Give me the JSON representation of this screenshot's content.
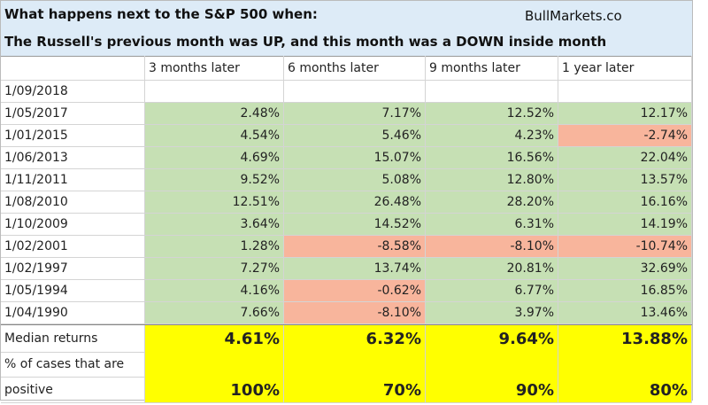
{
  "header": {
    "title_line1": "What happens next to the S&P 500 when:",
    "title_line2": "The Russell's previous month was UP, and this month was a DOWN inside month",
    "site": "BullMarkets.co",
    "color": "#ddebf7"
  },
  "table": {
    "columns": [
      "3 months later",
      "6 months later",
      "9 months later",
      "1 year later"
    ],
    "rows": [
      {
        "date": "1/09/2018",
        "values": [],
        "fills": []
      },
      {
        "date": "1/05/2017",
        "values": [
          "2.48%",
          "7.17%",
          "12.52%",
          "12.17%"
        ],
        "fills": [
          "#c6e0b4",
          "#c6e0b4",
          "#c6e0b4",
          "#c6e0b4"
        ]
      },
      {
        "date": "1/01/2015",
        "values": [
          "4.54%",
          "5.46%",
          "4.23%",
          "-2.74%"
        ],
        "fills": [
          "#c6e0b4",
          "#c6e0b4",
          "#c6e0b4",
          "#f8b59c"
        ]
      },
      {
        "date": "1/06/2013",
        "values": [
          "4.69%",
          "15.07%",
          "16.56%",
          "22.04%"
        ],
        "fills": [
          "#c6e0b4",
          "#c6e0b4",
          "#c6e0b4",
          "#c6e0b4"
        ]
      },
      {
        "date": "1/11/2011",
        "values": [
          "9.52%",
          "5.08%",
          "12.80%",
          "13.57%"
        ],
        "fills": [
          "#c6e0b4",
          "#c6e0b4",
          "#c6e0b4",
          "#c6e0b4"
        ]
      },
      {
        "date": "1/08/2010",
        "values": [
          "12.51%",
          "26.48%",
          "28.20%",
          "16.16%"
        ],
        "fills": [
          "#c6e0b4",
          "#c6e0b4",
          "#c6e0b4",
          "#c6e0b4"
        ]
      },
      {
        "date": "1/10/2009",
        "values": [
          "3.64%",
          "14.52%",
          "6.31%",
          "14.19%"
        ],
        "fills": [
          "#c6e0b4",
          "#c6e0b4",
          "#c6e0b4",
          "#c6e0b4"
        ]
      },
      {
        "date": "1/02/2001",
        "values": [
          "1.28%",
          "-8.58%",
          "-8.10%",
          "-10.74%"
        ],
        "fills": [
          "#c6e0b4",
          "#f8b59c",
          "#f8b59c",
          "#f8b59c"
        ]
      },
      {
        "date": "1/02/1997",
        "values": [
          "7.27%",
          "13.74%",
          "20.81%",
          "32.69%"
        ],
        "fills": [
          "#c6e0b4",
          "#c6e0b4",
          "#c6e0b4",
          "#c6e0b4"
        ]
      },
      {
        "date": "1/05/1994",
        "values": [
          "4.16%",
          "-0.62%",
          "6.77%",
          "16.85%"
        ],
        "fills": [
          "#c6e0b4",
          "#f8b59c",
          "#c6e0b4",
          "#c6e0b4"
        ]
      },
      {
        "date": "1/04/1990",
        "values": [
          "7.66%",
          "-8.10%",
          "3.97%",
          "13.46%"
        ],
        "fills": [
          "#c6e0b4",
          "#f8b59c",
          "#c6e0b4",
          "#c6e0b4"
        ]
      }
    ],
    "summary_color": "#ffff00",
    "median": {
      "label": "Median returns",
      "values": [
        "4.61%",
        "6.32%",
        "9.64%",
        "13.88%"
      ]
    },
    "positive": {
      "label_lines": [
        "% of cases that are",
        "positive"
      ],
      "values": [
        "100%",
        "70%",
        "90%",
        "80%"
      ]
    }
  }
}
